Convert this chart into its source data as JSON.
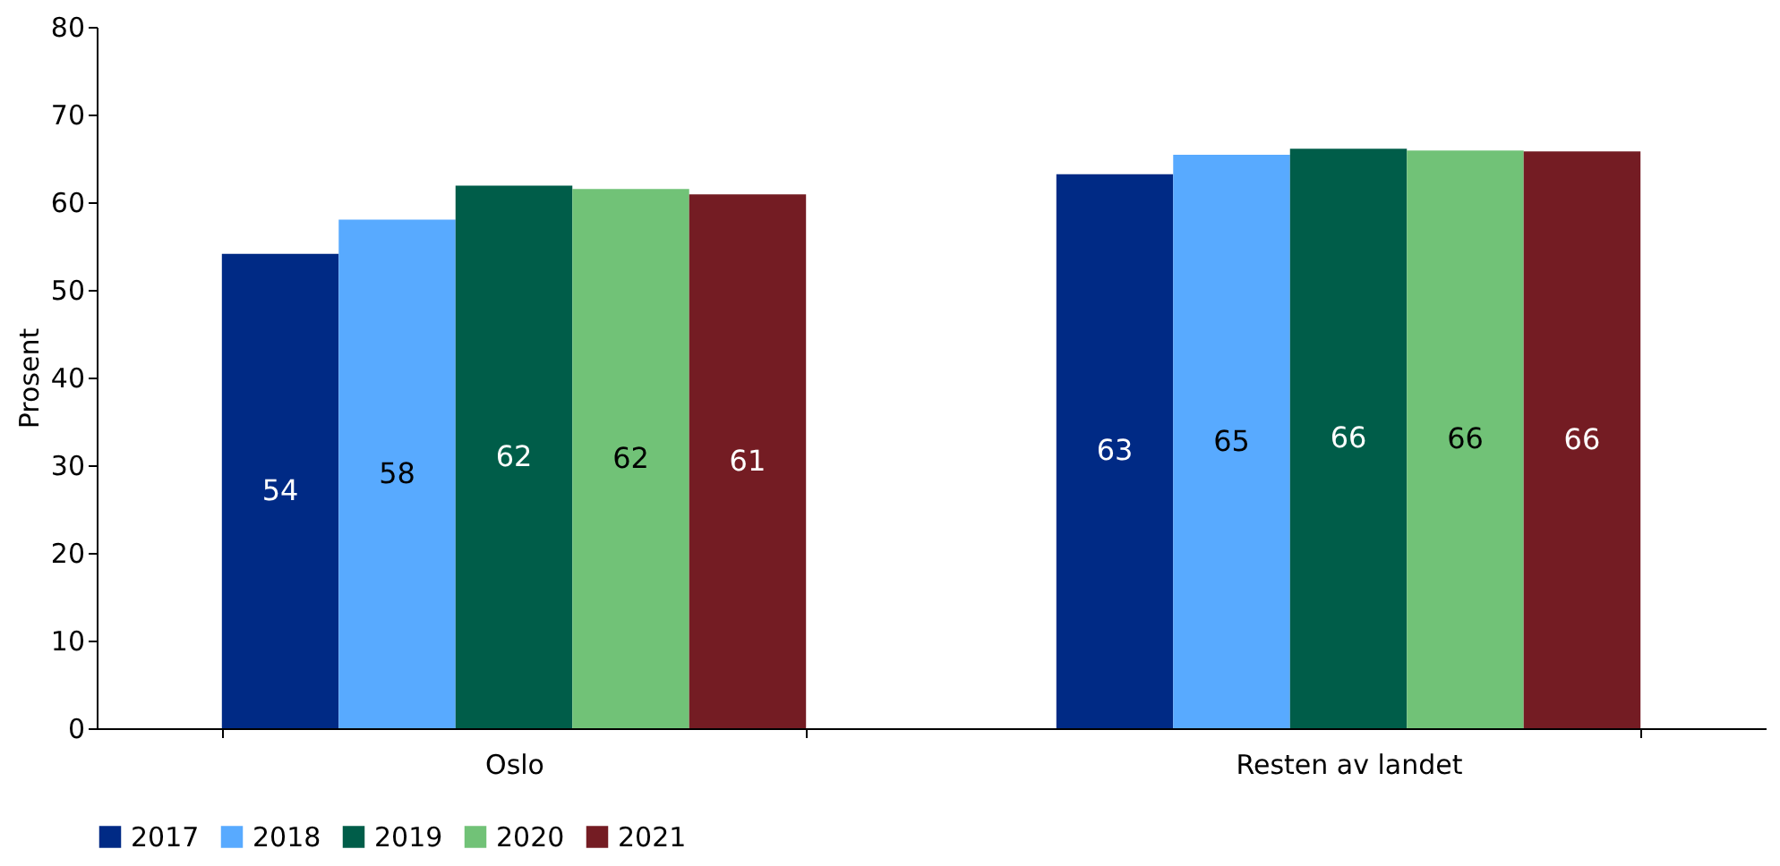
{
  "chart_data": {
    "type": "bar",
    "ylabel": "Prosent",
    "categories": [
      "Oslo",
      "Resten av landet"
    ],
    "series": [
      {
        "name": "2017",
        "color": "#002a85",
        "values": [
          54.1,
          63.2
        ],
        "value_labels": [
          "54",
          "63"
        ]
      },
      {
        "name": "2018",
        "color": "#58aaff",
        "values": [
          58.0,
          65.4
        ],
        "value_labels": [
          "58",
          "65"
        ]
      },
      {
        "name": "2019",
        "color": "#005d49",
        "values": [
          61.9,
          66.1
        ],
        "value_labels": [
          "62",
          "66"
        ]
      },
      {
        "name": "2020",
        "color": "#71c277",
        "values": [
          61.5,
          65.9
        ],
        "value_labels": [
          "62",
          "66"
        ]
      },
      {
        "name": "2021",
        "color": "#741c23",
        "values": [
          60.9,
          65.8
        ],
        "value_labels": [
          "61",
          "66"
        ]
      }
    ],
    "ylim": [
      0,
      80
    ],
    "yticks": [
      0,
      10,
      20,
      30,
      40,
      50,
      60,
      70,
      80
    ],
    "grid": false,
    "legend": "bottom left"
  }
}
